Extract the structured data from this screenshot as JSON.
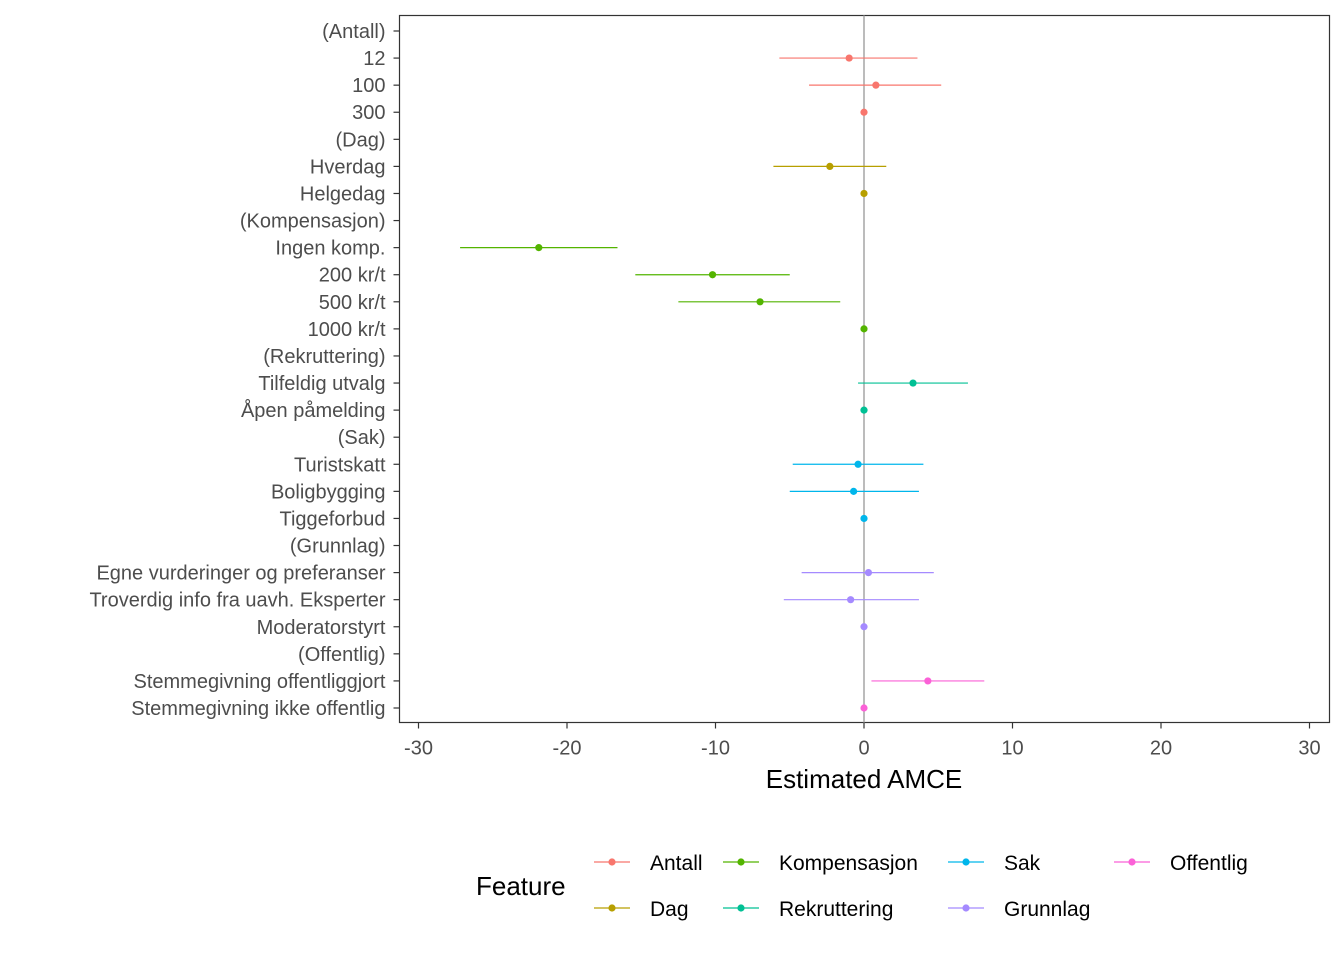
{
  "chart_data": {
    "type": "scatter",
    "subtype": "coefficient-plot-with-error-bars",
    "xlabel": "Estimated AMCE",
    "ylabel": "",
    "xlim": [
      -31.5,
      31.5
    ],
    "xticks": [
      -30,
      -20,
      -10,
      0,
      10,
      20,
      30
    ],
    "reference_line_x": 0,
    "legend": {
      "title": "Feature",
      "position": "bottom"
    },
    "series": [
      {
        "name": "Antall",
        "color": "#F8766D"
      },
      {
        "name": "Dag",
        "color": "#B79F00"
      },
      {
        "name": "Kompensasjon",
        "color": "#53B400"
      },
      {
        "name": "Rekruttering",
        "color": "#00C094"
      },
      {
        "name": "Sak",
        "color": "#00B6EB"
      },
      {
        "name": "Grunnlag",
        "color": "#A58AFF"
      },
      {
        "name": "Offentlig",
        "color": "#FB61D7"
      }
    ],
    "rows": [
      {
        "label": "(Antall)",
        "feature": "Antall",
        "header": true
      },
      {
        "label": "12",
        "feature": "Antall",
        "estimate": -1.0,
        "lower": -5.7,
        "upper": 3.6
      },
      {
        "label": "100",
        "feature": "Antall",
        "estimate": 0.8,
        "lower": -3.7,
        "upper": 5.2
      },
      {
        "label": "300",
        "feature": "Antall",
        "estimate": 0.0,
        "lower": 0.0,
        "upper": 0.0
      },
      {
        "label": "(Dag)",
        "feature": "Dag",
        "header": true
      },
      {
        "label": "Hverdag",
        "feature": "Dag",
        "estimate": -2.3,
        "lower": -6.1,
        "upper": 1.5
      },
      {
        "label": "Helgedag",
        "feature": "Dag",
        "estimate": 0.0,
        "lower": 0.0,
        "upper": 0.0
      },
      {
        "label": "(Kompensasjon)",
        "feature": "Kompensasjon",
        "header": true
      },
      {
        "label": "Ingen komp.",
        "feature": "Kompensasjon",
        "estimate": -21.9,
        "lower": -27.2,
        "upper": -16.6
      },
      {
        "label": "200 kr/t",
        "feature": "Kompensasjon",
        "estimate": -10.2,
        "lower": -15.4,
        "upper": -5.0
      },
      {
        "label": "500 kr/t",
        "feature": "Kompensasjon",
        "estimate": -7.0,
        "lower": -12.5,
        "upper": -1.6
      },
      {
        "label": "1000 kr/t",
        "feature": "Kompensasjon",
        "estimate": 0.0,
        "lower": 0.0,
        "upper": 0.0
      },
      {
        "label": "(Rekruttering)",
        "feature": "Rekruttering",
        "header": true
      },
      {
        "label": "Tilfeldig utvalg",
        "feature": "Rekruttering",
        "estimate": 3.3,
        "lower": -0.4,
        "upper": 7.0
      },
      {
        "label": "Åpen påmelding",
        "feature": "Rekruttering",
        "estimate": 0.0,
        "lower": 0.0,
        "upper": 0.0
      },
      {
        "label": "(Sak)",
        "feature": "Sak",
        "header": true
      },
      {
        "label": "Turistskatt",
        "feature": "Sak",
        "estimate": -0.4,
        "lower": -4.8,
        "upper": 4.0
      },
      {
        "label": "Boligbygging",
        "feature": "Sak",
        "estimate": -0.7,
        "lower": -5.0,
        "upper": 3.7
      },
      {
        "label": "Tiggeforbud",
        "feature": "Sak",
        "estimate": 0.0,
        "lower": 0.0,
        "upper": 0.0
      },
      {
        "label": "(Grunnlag)",
        "feature": "Grunnlag",
        "header": true
      },
      {
        "label": "Egne vurderinger og preferanser",
        "feature": "Grunnlag",
        "estimate": 0.3,
        "lower": -4.2,
        "upper": 4.7
      },
      {
        "label": "Troverdig info fra uavh. Eksperter",
        "feature": "Grunnlag",
        "estimate": -0.9,
        "lower": -5.4,
        "upper": 3.7
      },
      {
        "label": "Moderatorstyrt",
        "feature": "Grunnlag",
        "estimate": 0.0,
        "lower": 0.0,
        "upper": 0.0
      },
      {
        "label": "(Offentlig)",
        "feature": "Offentlig",
        "header": true
      },
      {
        "label": "Stemmegivning offentliggjort",
        "feature": "Offentlig",
        "estimate": 4.3,
        "lower": 0.5,
        "upper": 8.1
      },
      {
        "label": "Stemmegivning ikke offentlig",
        "feature": "Offentlig",
        "estimate": 0.0,
        "lower": 0.0,
        "upper": 0.0
      }
    ]
  }
}
